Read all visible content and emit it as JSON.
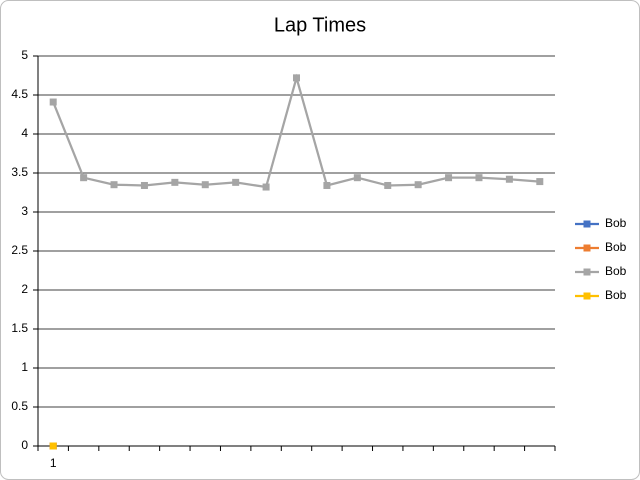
{
  "chart_data": {
    "type": "line",
    "title": "Lap Times",
    "categories": [
      "1",
      null,
      null,
      null,
      null,
      null,
      null,
      null,
      null,
      null,
      null,
      null,
      null,
      null,
      null,
      null,
      null
    ],
    "series": [
      {
        "name": "Bob",
        "color": "#4472c4",
        "values": [
          0,
          null,
          null,
          null,
          null,
          null,
          null,
          null,
          null,
          null,
          null,
          null,
          null,
          null,
          null,
          null,
          null
        ]
      },
      {
        "name": "Bob",
        "color": "#ed7d31",
        "values": [
          0,
          null,
          null,
          null,
          null,
          null,
          null,
          null,
          null,
          null,
          null,
          null,
          null,
          null,
          null,
          null,
          null
        ]
      },
      {
        "name": "Bob",
        "color": "#a5a5a5",
        "values": [
          4.41,
          3.44,
          3.35,
          3.34,
          3.38,
          3.35,
          3.38,
          3.32,
          4.72,
          3.34,
          3.44,
          3.34,
          3.35,
          3.44,
          3.44,
          3.42,
          3.39
        ]
      },
      {
        "name": "Bob",
        "color": "#ffc000",
        "values": [
          0,
          null,
          null,
          null,
          null,
          null,
          null,
          null,
          null,
          null,
          null,
          null,
          null,
          null,
          null,
          null,
          null
        ]
      }
    ],
    "ylim": [
      0,
      5
    ],
    "yticks": [
      0,
      0.5,
      1,
      1.5,
      2,
      2.5,
      3,
      3.5,
      4,
      4.5,
      5
    ],
    "grid": true,
    "legend": "right"
  }
}
